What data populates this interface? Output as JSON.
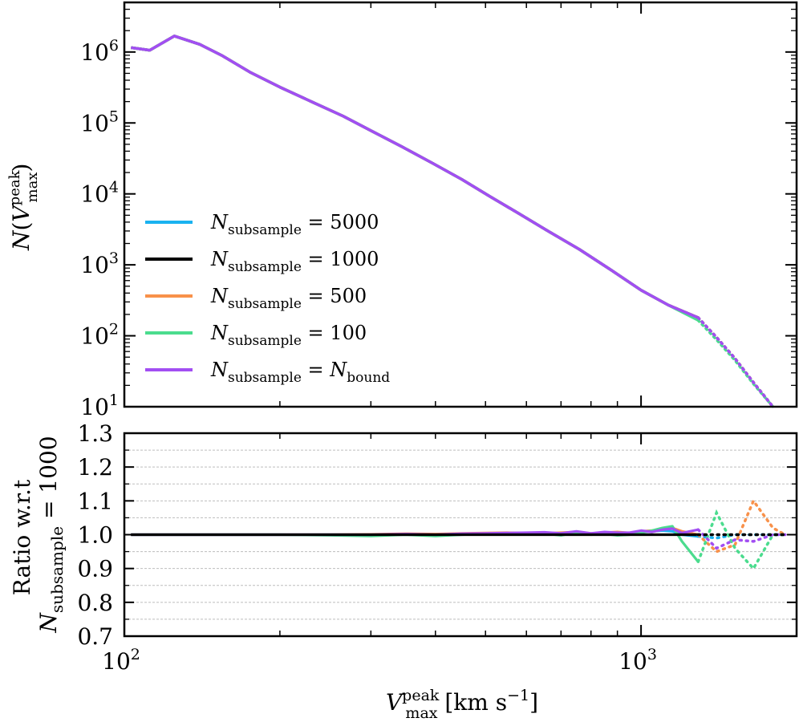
{
  "chart_data": [
    {
      "panel": "top",
      "type": "line",
      "yscale": "log",
      "xscale": "log",
      "xlim": [
        100,
        2000
      ],
      "ylim": [
        10,
        5000000
      ],
      "ylabel_parts": {
        "main": "N(V",
        "sup": "peak",
        "sub": "max",
        "close": ")"
      },
      "yticks": [
        {
          "value": 10,
          "base": "10",
          "exp": "1"
        },
        {
          "value": 100,
          "base": "10",
          "exp": "2"
        },
        {
          "value": 1000,
          "base": "10",
          "exp": "3"
        },
        {
          "value": 10000,
          "base": "10",
          "exp": "4"
        },
        {
          "value": 100000,
          "base": "10",
          "exp": "5"
        },
        {
          "value": 1000000,
          "base": "10",
          "exp": "6"
        }
      ],
      "legend": {
        "placement": "center-left",
        "entries": [
          {
            "sym": "N",
            "sub": "subsample",
            "rhs": "5000",
            "rhs_sub": "",
            "color": "#1ab2f0"
          },
          {
            "sym": "N",
            "sub": "subsample",
            "rhs": "1000",
            "rhs_sub": "",
            "color": "#000000"
          },
          {
            "sym": "N",
            "sub": "subsample",
            "rhs": "500",
            "rhs_sub": "",
            "color": "#f8914a"
          },
          {
            "sym": "N",
            "sub": "subsample",
            "rhs": "100",
            "rhs_sub": "",
            "color": "#4bdc8e"
          },
          {
            "sym": "N",
            "sub": "subsample",
            "rhs": "N",
            "rhs_sub": "bound",
            "color": "#a24ef2"
          }
        ]
      },
      "x": [
        103,
        112,
        122,
        133,
        146,
        160,
        175,
        192,
        210,
        230,
        252,
        276,
        302,
        331,
        362,
        396,
        434,
        475,
        520,
        569,
        623,
        682,
        747,
        818,
        895,
        980,
        1073,
        1175,
        1286
      ],
      "series": [
        {
          "name": "5000",
          "color": "#1ab2f0",
          "values": [
            1140000,
            1060000,
            1670000,
            1290000,
            910000,
            600000,
            400000,
            270000,
            183000,
            124000,
            84000,
            57000,
            38500,
            26000,
            17600,
            11900,
            8000,
            5400,
            3650,
            2450,
            1650,
            1110,
            745,
            500,
            335,
            225,
            700,
            300,
            180
          ]
        },
        {
          "name": "1000",
          "color": "#000000",
          "values": [
            1140000,
            1060000,
            1670000,
            1290000,
            910000,
            600000,
            400000,
            270000,
            183000,
            124000,
            84000,
            57000,
            38500,
            26000,
            17600,
            11900,
            8000,
            5400,
            3650,
            2450,
            1650,
            1110,
            745,
            500,
            335,
            225,
            700,
            300,
            180
          ]
        },
        {
          "name": "500",
          "color": "#f8914a",
          "values": [
            1140000,
            1060000,
            1670000,
            1290000,
            910000,
            600000,
            400000,
            270000,
            183000,
            124000,
            84000,
            57000,
            38500,
            26000,
            17600,
            11900,
            8000,
            5400,
            3650,
            2450,
            1650,
            1110,
            745,
            500,
            335,
            225,
            700,
            300,
            180
          ]
        },
        {
          "name": "100",
          "color": "#4bdc8e",
          "values": [
            1140000,
            1060000,
            1670000,
            1290000,
            910000,
            600000,
            400000,
            270000,
            183000,
            124000,
            84000,
            57000,
            38500,
            26000,
            17600,
            11900,
            8000,
            5400,
            3650,
            2450,
            1650,
            1110,
            745,
            500,
            335,
            225,
            700,
            300,
            165
          ]
        },
        {
          "name": "N_bound",
          "color": "#a24ef2",
          "values": [
            1140000,
            1060000,
            1670000,
            1290000,
            910000,
            600000,
            400000,
            270000,
            183000,
            124000,
            84000,
            57000,
            38500,
            26000,
            17600,
            11900,
            8000,
            5400,
            3650,
            2450,
            1650,
            1110,
            745,
            500,
            335,
            225,
            700,
            300,
            180
          ]
        }
      ],
      "curve_points": {
        "x": [
          103,
          112,
          122,
          133,
          146,
          160,
          175,
          192,
          210,
          230,
          252,
          276,
          302,
          331,
          362,
          396,
          434,
          475,
          520,
          569,
          623,
          682,
          747,
          818,
          895,
          980,
          1073,
          1175,
          1286
        ],
        "y": [
          1140000,
          1060000,
          1670000,
          1290000,
          910000,
          600000,
          400000,
          270000,
          183000,
          124000,
          84000,
          57000,
          38500,
          26000,
          17600,
          11900,
          8000,
          5400,
          3650,
          2450,
          1650,
          1110,
          745,
          500,
          335,
          225,
          700,
          300,
          180
        ]
      },
      "solid_x": [
        103,
        112,
        125,
        140,
        155,
        175,
        200,
        230,
        265,
        300,
        345,
        395,
        450,
        510,
        580,
        660,
        760,
        870,
        1000,
        1130,
        1290
      ],
      "solid_y": [
        1150000,
        1060000,
        1680000,
        1280000,
        880000,
        520000,
        320000,
        200000,
        125000,
        78000,
        46000,
        27000,
        16000,
        9200,
        5300,
        3000,
        1650,
        870,
        440,
        270,
        180
      ],
      "tail_x": [
        1290,
        1400,
        1520,
        1650,
        1800
      ],
      "tail_y": [
        180,
        95,
        48,
        22,
        10
      ],
      "tail_y_100": [
        165,
        88,
        45,
        21,
        10
      ]
    },
    {
      "panel": "bottom",
      "type": "line",
      "xscale": "log",
      "xlim": [
        100,
        2000
      ],
      "ylim": [
        0.7,
        1.3
      ],
      "yticks": [
        "0.7",
        "0.8",
        "0.9",
        "1.0",
        "1.1",
        "1.2",
        "1.3"
      ],
      "grid": true,
      "ylabel_line1": "Ratio w.r.t",
      "ylabel_line2": {
        "sym": "N",
        "sub": "subsample",
        "rhs": "1000"
      },
      "xticks": [
        {
          "value": 100,
          "base": "10",
          "exp": "2"
        },
        {
          "value": 1000,
          "base": "10",
          "exp": "3"
        }
      ],
      "xlabel": {
        "sym": "V",
        "sup": "peak",
        "sub": "max",
        "unit": "[km s",
        "unit_exp": "−1",
        "unit_close": "]"
      },
      "solid_x": [
        103,
        150,
        200,
        250,
        300,
        350,
        400,
        450,
        500,
        550,
        600,
        650,
        700,
        750,
        800,
        850,
        900,
        950,
        1000,
        1050,
        1100,
        1150,
        1200,
        1290
      ],
      "series": [
        {
          "name": "5000",
          "color": "#1ab2f0",
          "values": [
            1.0,
            1.0,
            1.0,
            1.0,
            1.0,
            1.002,
            1.0,
            1.003,
            1.003,
            1.005,
            1.004,
            1.005,
            1.003,
            1.008,
            1.003,
            1.007,
            1.006,
            1.004,
            1.008,
            1.01,
            1.012,
            1.01,
            1.0,
            0.995
          ]
        },
        {
          "name": "1000",
          "color": "#000000",
          "values": [
            1.0,
            1.0,
            1.0,
            1.0,
            1.0,
            1.0,
            1.0,
            1.0,
            1.0,
            1.0,
            1.0,
            1.0,
            1.0,
            1.0,
            1.0,
            1.0,
            1.0,
            1.0,
            1.0,
            1.0,
            1.0,
            1.0,
            1.0,
            1.0
          ]
        },
        {
          "name": "500",
          "color": "#f8914a",
          "values": [
            1.0,
            1.0,
            1.0,
            1.0,
            1.001,
            1.003,
            1.002,
            1.004,
            1.005,
            1.006,
            1.005,
            1.004,
            1.006,
            1.008,
            1.004,
            1.006,
            1.008,
            1.005,
            1.01,
            1.012,
            1.015,
            1.02,
            1.01,
            1.0
          ]
        },
        {
          "name": "100",
          "color": "#4bdc8e",
          "values": [
            1.0,
            1.0,
            1.0,
            0.998,
            0.996,
            1.0,
            0.996,
            1.0,
            1.002,
            1.004,
            1.002,
            1.003,
            0.998,
            1.006,
            1.0,
            1.002,
            0.998,
            1.0,
            1.006,
            1.012,
            1.02,
            1.025,
            0.98,
            0.92
          ]
        },
        {
          "name": "N_bound",
          "color": "#a24ef2",
          "values": [
            1.0,
            1.0,
            1.0,
            1.0,
            1.0,
            1.002,
            1.0,
            1.003,
            1.004,
            1.005,
            1.006,
            1.007,
            1.004,
            1.01,
            1.004,
            1.008,
            1.006,
            1.006,
            1.012,
            1.008,
            1.015,
            1.018,
            1.005,
            1.015
          ]
        }
      ],
      "tail_x": [
        1290,
        1400,
        1520,
        1650,
        1800,
        1900
      ],
      "tail_series": [
        {
          "name": "1000",
          "color": "#000000",
          "values": [
            1.0,
            1.0,
            1.0,
            1.0,
            1.0,
            1.0
          ]
        },
        {
          "name": "500",
          "color": "#f8914a",
          "values": [
            1.0,
            0.95,
            0.97,
            1.1,
            1.02,
            1.0
          ]
        },
        {
          "name": "100",
          "color": "#4bdc8e",
          "values": [
            0.92,
            1.065,
            0.96,
            0.9,
            1.0,
            1.0
          ]
        },
        {
          "name": "N_bound",
          "color": "#a24ef2",
          "values": [
            1.015,
            0.96,
            0.985,
            0.98,
            1.0,
            1.0
          ]
        },
        {
          "name": "5000",
          "color": "#1ab2f0",
          "values": [
            0.995,
            0.99,
            1.0,
            1.0,
            1.0,
            1.0
          ]
        }
      ]
    }
  ]
}
